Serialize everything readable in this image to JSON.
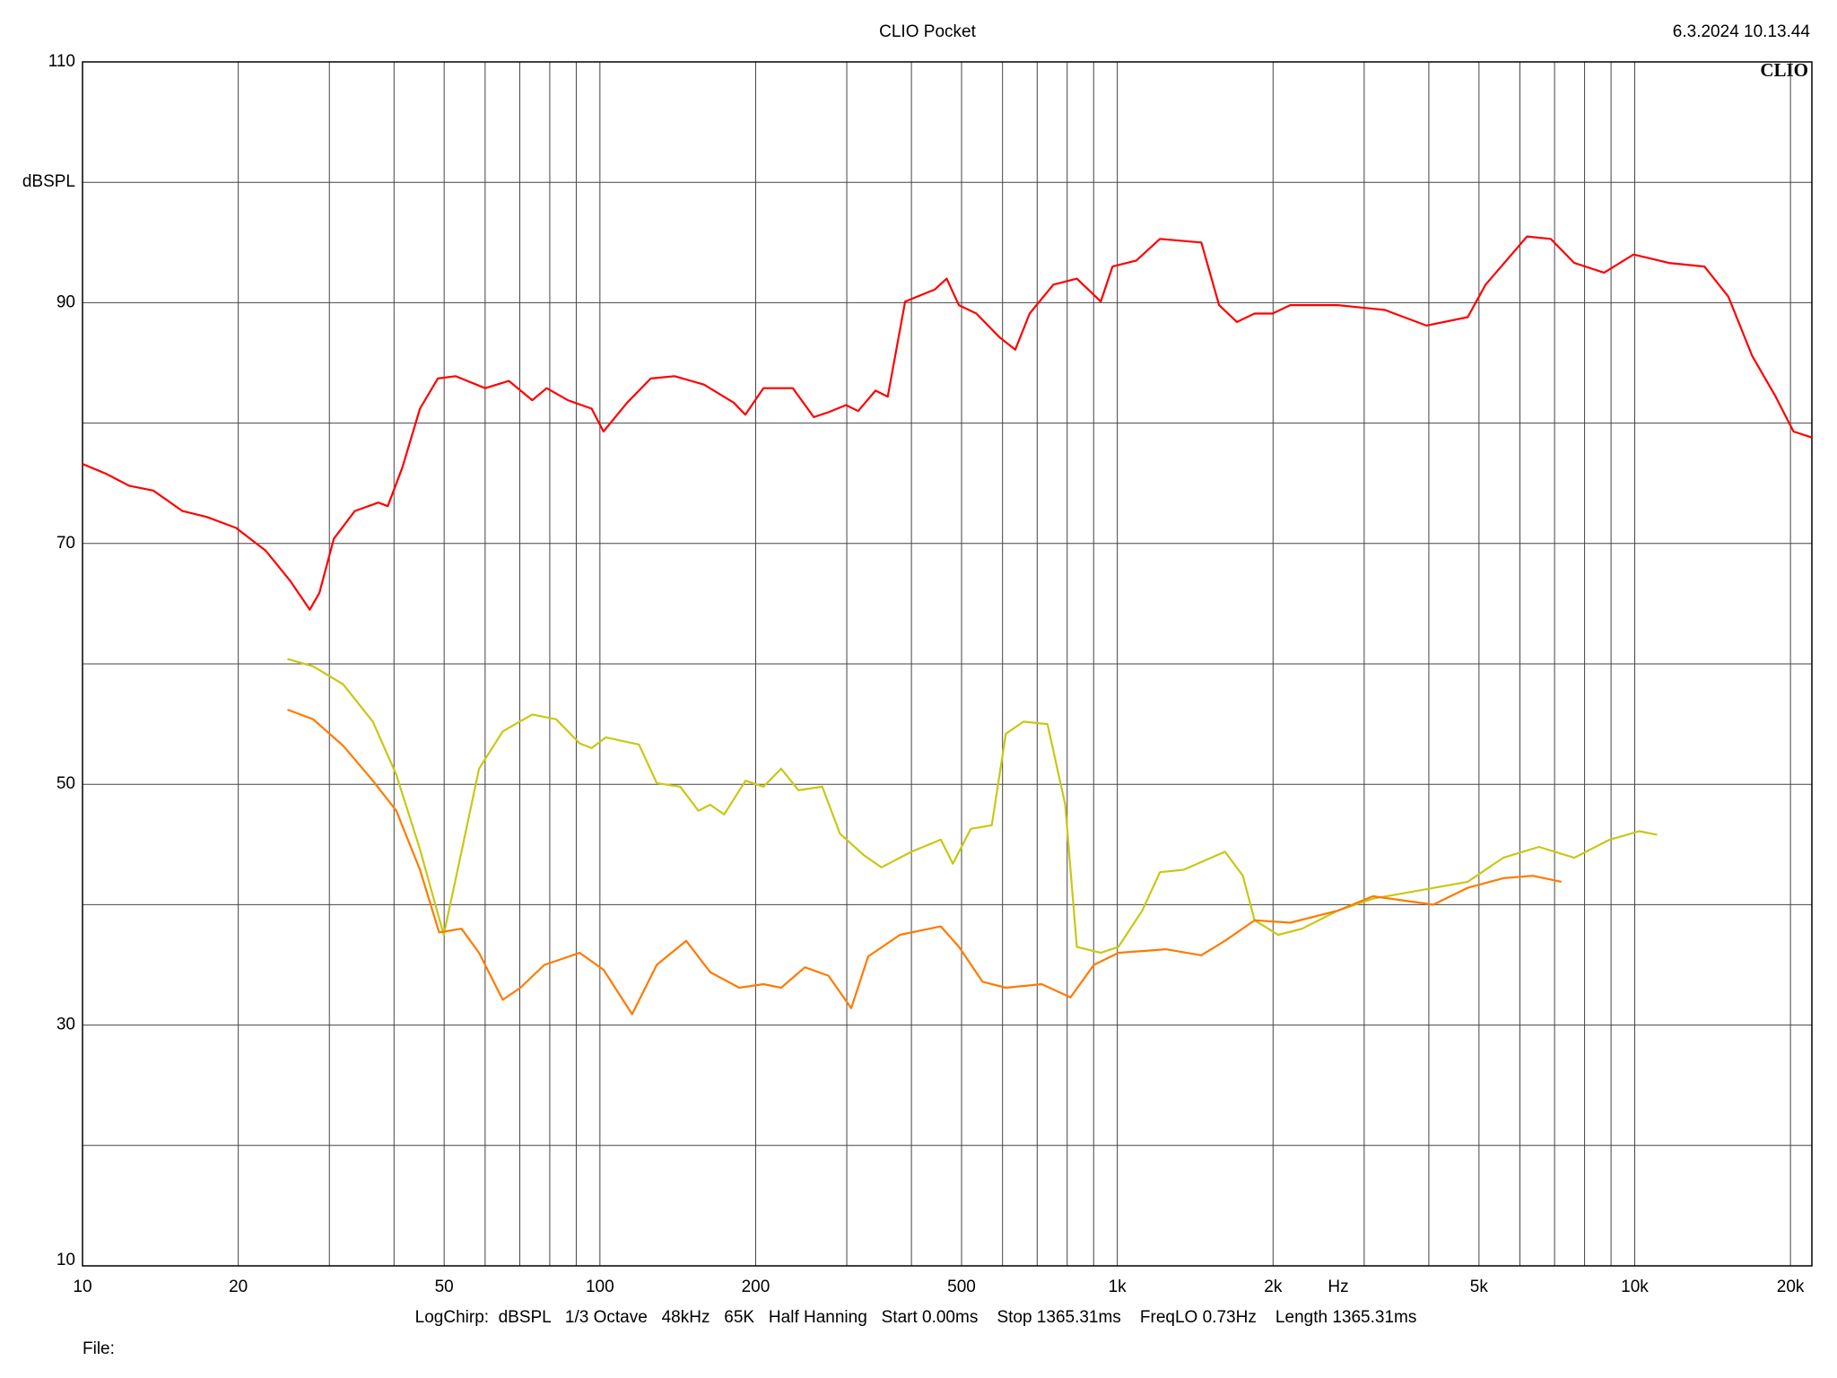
{
  "chart_data": {
    "type": "line",
    "title": "CLIO Pocket",
    "timestamp": "6.3.2024 10.13.44",
    "logo": "CLIO",
    "ylabel": "dBSPL",
    "xlabel": "Hz",
    "footer": "LogChirp:  dBSPL   1/3 Octave   48kHz   65K   Half Hanning   Start 0.00ms    Stop 1365.31ms    FreqLO 0.73Hz    Length 1365.31ms",
    "file_label": "File:",
    "x_scale": "log",
    "grid": true,
    "xlim": [
      10,
      22000
    ],
    "xticks": [
      10,
      20,
      50,
      100,
      200,
      500,
      {
        "value": 1000,
        "label": "1k"
      },
      {
        "value": 2000,
        "label": "2k"
      },
      {
        "value": 5000,
        "label": "5k"
      },
      {
        "value": 10000,
        "label": "10k"
      },
      {
        "value": 20000,
        "label": "20k"
      }
    ],
    "xminor": [
      30,
      40,
      60,
      70,
      80,
      90,
      300,
      400,
      600,
      700,
      800,
      900,
      3000,
      4000,
      6000,
      7000,
      8000,
      9000
    ],
    "ylim": [
      10,
      110
    ],
    "yticks": [
      10,
      30,
      50,
      70,
      90,
      110
    ],
    "yminor": [
      20,
      40,
      60,
      80,
      100
    ],
    "series": [
      {
        "color": "#ff0000",
        "x": [
          10,
          11.1,
          12.3,
          13.7,
          15.6,
          17.4,
          19.8,
          22.6,
          25.2,
          27.5,
          28.7,
          30.6,
          33.6,
          37.3,
          38.9,
          41.5,
          44.9,
          48.6,
          52.6,
          60,
          66.7,
          74,
          78.9,
          86.7,
          96.4,
          101.6,
          112.9,
          125.4,
          139.4,
          158.9,
          181.4,
          191,
          207,
          236,
          259,
          276.5,
          299,
          315.5,
          341,
          360,
          389,
          444,
          468,
          494,
          534,
          593,
          635,
          677,
          752,
          835,
          929,
          979,
          1088,
          1209,
          1453,
          1573,
          1703,
          1842,
          1995,
          2159,
          2667,
          3290,
          3956,
          4756,
          5150,
          6193,
          6883,
          7643,
          8724,
          9950,
          11650,
          13640,
          15170,
          16860,
          18720,
          20270,
          22000
        ],
        "values": [
          76.6,
          75.8,
          74.8,
          74.4,
          72.7,
          72.2,
          71.3,
          69.4,
          66.9,
          64.5,
          65.9,
          70.4,
          72.7,
          73.4,
          73.1,
          76.3,
          81.2,
          83.7,
          83.9,
          82.9,
          83.5,
          81.9,
          82.9,
          81.9,
          81.2,
          79.3,
          81.7,
          83.7,
          83.9,
          83.2,
          81.7,
          80.7,
          82.9,
          82.9,
          80.5,
          80.9,
          81.5,
          81.0,
          82.7,
          82.2,
          90.1,
          91.1,
          92.0,
          89.8,
          89.1,
          87.1,
          86.1,
          89.1,
          91.5,
          92.0,
          90.1,
          93.0,
          93.5,
          95.3,
          95.0,
          89.8,
          88.4,
          89.1,
          89.1,
          89.8,
          89.8,
          89.4,
          88.1,
          88.8,
          91.5,
          95.5,
          95.3,
          93.3,
          92.5,
          94.0,
          93.3,
          93.0,
          90.5,
          85.6,
          82.2,
          79.3,
          78.8
        ]
      },
      {
        "color": "#c8c814",
        "x": [
          24.9,
          27.9,
          31.9,
          36.4,
          40.4,
          44.9,
          49.9,
          54,
          58.4,
          64.9,
          74,
          82.3,
          91.4,
          96.4,
          102.7,
          119,
          128.8,
          143,
          155,
          163.3,
          173.8,
          191.2,
          207,
          224,
          242,
          269,
          291,
          324,
          350,
          400,
          456,
          481,
          521,
          572,
          609,
          659,
          733,
          793,
          835,
          929,
          1005,
          1117,
          1209,
          1343,
          1615,
          1748,
          1842,
          2047,
          2275,
          2667,
          3120,
          3855,
          4756,
          5570,
          6530,
          7643,
          8950,
          10210,
          11050
        ],
        "values": [
          60.4,
          59.8,
          58.3,
          55.2,
          50.8,
          44.6,
          37.5,
          44.4,
          51.3,
          54.4,
          55.8,
          55.4,
          53.4,
          53.0,
          53.9,
          53.3,
          50.1,
          49.8,
          47.8,
          48.3,
          47.5,
          50.3,
          49.8,
          51.3,
          49.5,
          49.8,
          45.9,
          44.1,
          43.1,
          44.4,
          45.4,
          43.4,
          46.3,
          46.6,
          54.2,
          55.2,
          55.0,
          48.3,
          36.5,
          36.0,
          36.5,
          39.5,
          42.7,
          42.9,
          44.4,
          42.4,
          38.7,
          37.5,
          38.0,
          39.5,
          40.5,
          41.2,
          41.9,
          43.9,
          44.8,
          43.9,
          45.4,
          46.1,
          45.8
        ]
      },
      {
        "color": "#ff7a00",
        "x": [
          24.9,
          27.9,
          31.9,
          36.4,
          40.4,
          44.9,
          48.9,
          54,
          58.4,
          64.9,
          70.2,
          78.1,
          91.4,
          101.6,
          115.4,
          128.8,
          146.8,
          163.3,
          185.9,
          207,
          224,
          249,
          276.5,
          306,
          330,
          380,
          456,
          494,
          549,
          609,
          714,
          812,
          901,
          1005,
          1240,
          1453,
          1615,
          1842,
          2159,
          2667,
          3120,
          4080,
          4756,
          5570,
          6350,
          7220
        ],
        "values": [
          56.2,
          55.4,
          53.2,
          50.3,
          47.8,
          42.9,
          37.7,
          38.0,
          36.0,
          32.1,
          33.1,
          35.0,
          36.0,
          34.6,
          30.9,
          35.0,
          37.0,
          34.4,
          33.1,
          33.4,
          33.1,
          34.8,
          34.1,
          31.4,
          35.7,
          37.5,
          38.2,
          36.5,
          33.6,
          33.1,
          33.4,
          32.3,
          35.0,
          36.0,
          36.3,
          35.8,
          37.0,
          38.7,
          38.5,
          39.5,
          40.7,
          40.0,
          41.4,
          42.2,
          42.4,
          41.9
        ]
      }
    ]
  }
}
